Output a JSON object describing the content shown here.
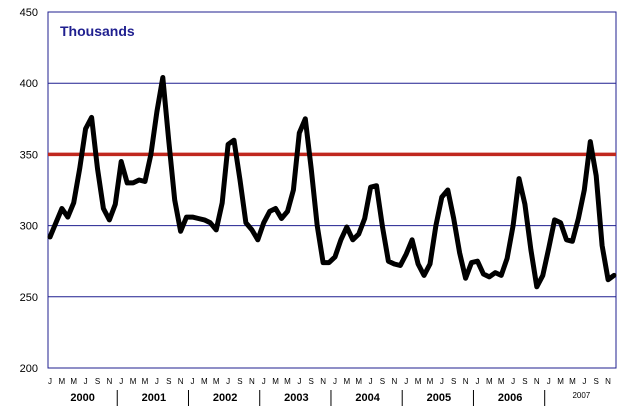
{
  "chart_data": {
    "type": "line",
    "title": "Thousands",
    "ylim": [
      200,
      450
    ],
    "y_ticks": [
      200,
      250,
      300,
      350,
      400,
      450
    ],
    "grid": true,
    "reference_line": {
      "value": 350,
      "color": "#C0281E"
    },
    "colors": {
      "line": "#000000",
      "grid": "#1F1F8F",
      "frame": "#1F1F8F",
      "title": "#1F1F8F"
    },
    "month_labels": [
      "J",
      "M",
      "M",
      "J",
      "S",
      "N"
    ],
    "years": [
      {
        "label": "2000"
      },
      {
        "label": "2001"
      },
      {
        "label": "2002"
      },
      {
        "label": "2003"
      },
      {
        "label": "2004"
      },
      {
        "label": "2005"
      },
      {
        "label": "2006"
      },
      {
        "label": "2007"
      }
    ],
    "series": [
      {
        "values": [
          292,
          302,
          312,
          306,
          316,
          340,
          368,
          376,
          340,
          312,
          304,
          315,
          345,
          330,
          330,
          332,
          331,
          350,
          380,
          404,
          360,
          318,
          296,
          306,
          306,
          305,
          304,
          302,
          297,
          316,
          357,
          360,
          332,
          302,
          297,
          290,
          302,
          310,
          312,
          305,
          310,
          325,
          365,
          375,
          340,
          300,
          274,
          274,
          278,
          290,
          299,
          290,
          294,
          305,
          327,
          328,
          299,
          275,
          273,
          272,
          280,
          290,
          273,
          265,
          273,
          300,
          320,
          325,
          305,
          281,
          263,
          274,
          275,
          266,
          264,
          267,
          265,
          277,
          300,
          333,
          315,
          283,
          257,
          265,
          284,
          304,
          302,
          290,
          289,
          305,
          325,
          359,
          335,
          286,
          262,
          265
        ]
      }
    ]
  }
}
